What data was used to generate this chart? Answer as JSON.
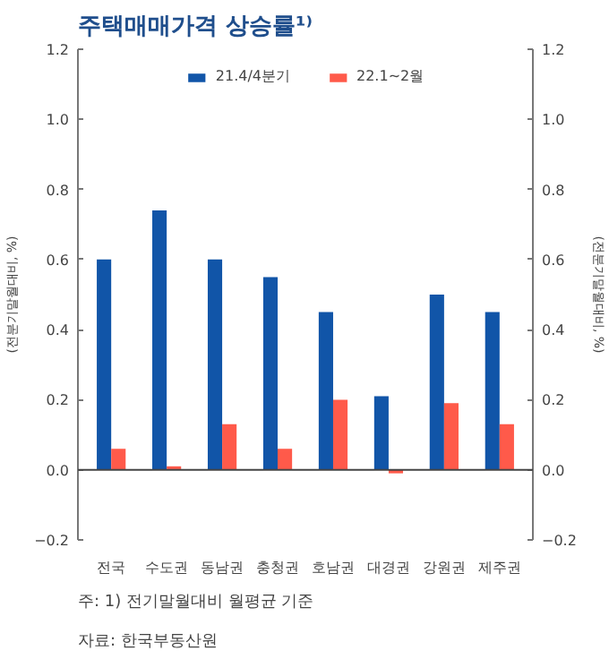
{
  "chart_data": {
    "type": "bar",
    "title": "주택매매가격 상승률¹⁾",
    "ylabel": "(전분기말월대비, %)",
    "y2label": "(전분기말월대비, %)",
    "categories": [
      "전국",
      "수도권",
      "동남권",
      "충청권",
      "호남권",
      "대경권",
      "강원권",
      "제주권"
    ],
    "series": [
      {
        "name": "21.4/4분기",
        "color": "#1155a8",
        "values": [
          0.6,
          0.74,
          0.6,
          0.55,
          0.45,
          0.21,
          0.5,
          0.45
        ]
      },
      {
        "name": "22.1~2월",
        "color": "#ff5a4a",
        "values": [
          0.06,
          0.01,
          0.13,
          0.06,
          0.2,
          -0.01,
          0.19,
          0.13
        ]
      }
    ],
    "ylim": [
      -0.2,
      1.2
    ],
    "yticks": [
      {
        "value": -0.2,
        "label": "−0.2"
      },
      {
        "value": 0,
        "label": "0.0"
      },
      {
        "value": 0.2,
        "label": "0.2"
      },
      {
        "value": 0.4,
        "label": "0.4"
      },
      {
        "value": 0.6,
        "label": "0.6"
      },
      {
        "value": 0.8,
        "label": "0.8"
      },
      {
        "value": 1.0,
        "label": "1.0"
      },
      {
        "value": 1.2,
        "label": "1.2"
      }
    ],
    "y2lim": [
      -0.2,
      1.2
    ],
    "y2ticks": [
      {
        "value": -0.2,
        "label": "−0.2"
      },
      {
        "value": 0,
        "label": "0.0"
      },
      {
        "value": 0.2,
        "label": "0.2"
      },
      {
        "value": 0.4,
        "label": "0.4"
      },
      {
        "value": 0.6,
        "label": "0.6"
      },
      {
        "value": 0.8,
        "label": "0.8"
      },
      {
        "value": 1.0,
        "label": "1.0"
      },
      {
        "value": 1.2,
        "label": "1.2"
      }
    ],
    "grid": false,
    "legend": "top",
    "ref_lines": [
      {
        "axis": "y",
        "value": 0,
        "color": "#444444"
      }
    ],
    "annotations": [
      "주: 1) 전기말월대비 월평균 기준",
      "자료: 한국부동산원"
    ]
  }
}
